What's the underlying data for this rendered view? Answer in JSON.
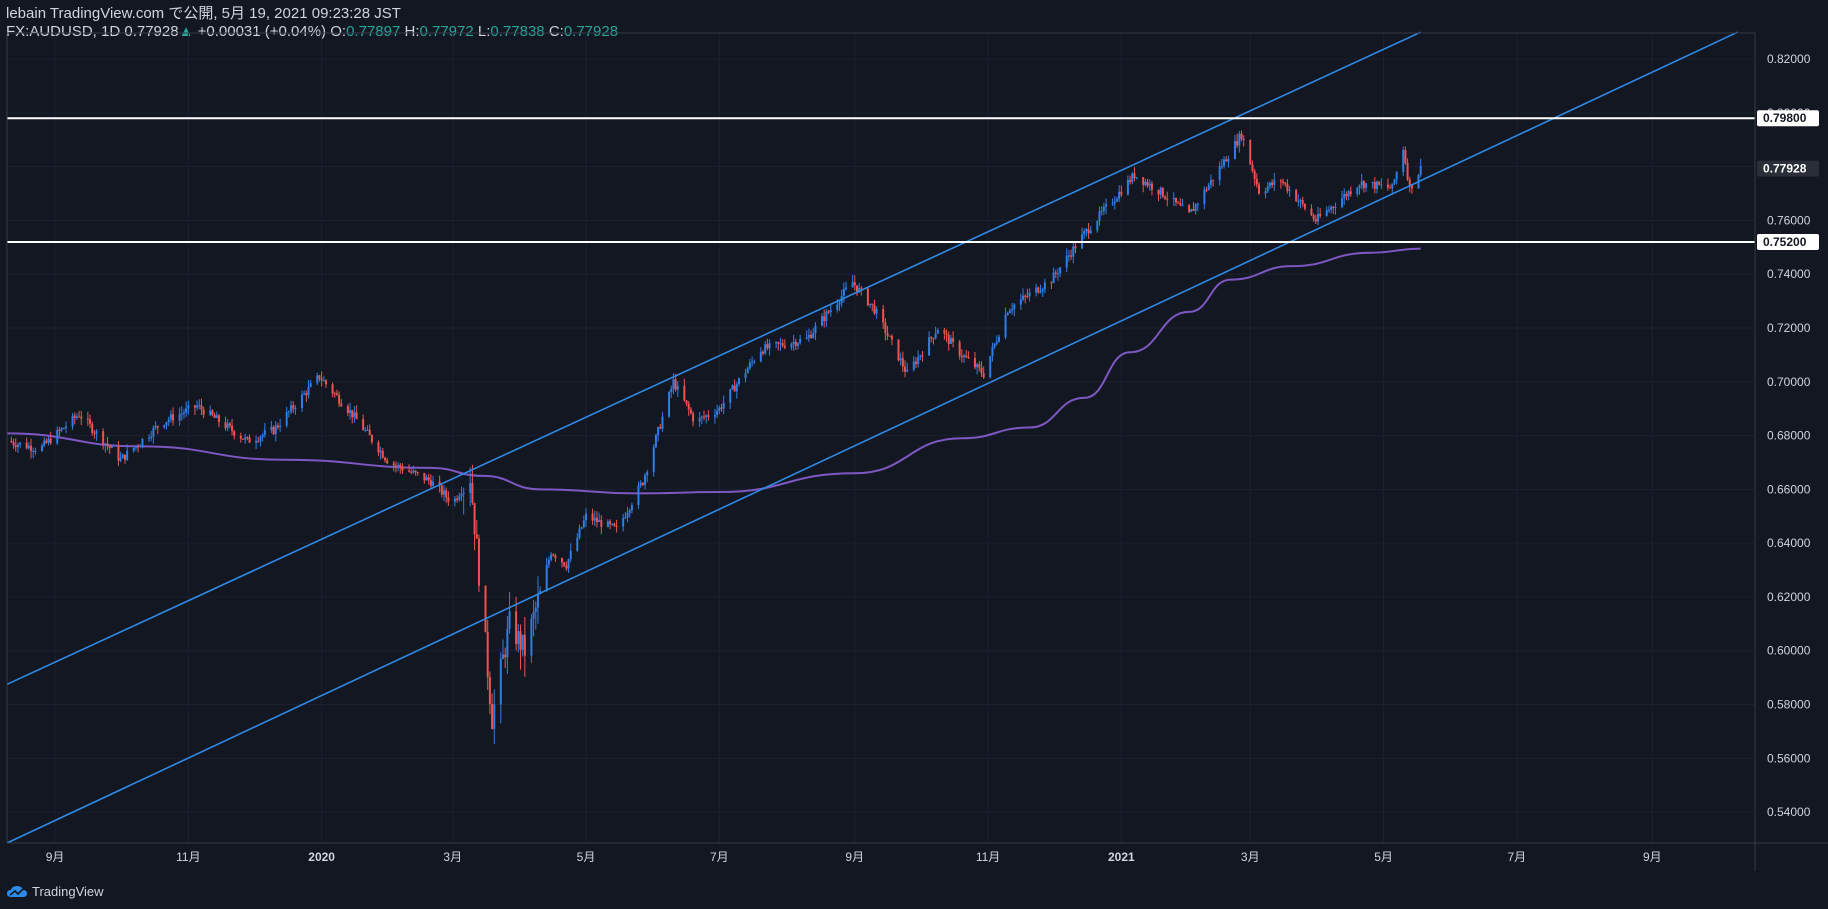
{
  "header": {
    "line1": "lebain TradingView.com で公開, 5月 19, 2021 09:23:28 JST",
    "symbol": "FX:AUDUSD, 1D",
    "last": "0.77928",
    "change_arrow": "▲",
    "change": "+0.00031 (+0.04%)",
    "o_label": "O:",
    "o_value": "0.77897",
    "h_label": "H:",
    "h_value": "0.77972",
    "l_label": "L:",
    "l_value": "0.77838",
    "c_label": "C:",
    "c_value": "0.77928"
  },
  "footer": {
    "brand": "TradingView",
    "icon": "tradingview-cloud-icon"
  },
  "colors": {
    "background": "#131722",
    "up": "#2e7ee6",
    "down": "#ef5350",
    "channel": "#2e8ae6",
    "ma": "#7e57c2",
    "hline": "#ffffff",
    "axis_text": "#d1d4dc",
    "price_tag_bg": "#ffffff",
    "last_price_bg": "#2a2e39"
  },
  "chart_data": {
    "type": "candlestick",
    "symbol": "FX:AUDUSD",
    "timeframe": "1D",
    "y_ticks": [
      "0.82000",
      "0.80000",
      "0.78000",
      "0.76000",
      "0.74000",
      "0.72000",
      "0.70000",
      "0.68000",
      "0.66000",
      "0.64000",
      "0.62000",
      "0.60000",
      "0.58000",
      "0.56000",
      "0.54000"
    ],
    "x_ticks": [
      "9月",
      "11月",
      "2020",
      "3月",
      "5月",
      "7月",
      "9月",
      "11月",
      "2021",
      "3月",
      "5月",
      "7月",
      "9月"
    ],
    "x_range": [
      "2019-08-10",
      "2021-10-18"
    ],
    "y_range": [
      0.5285,
      0.8297
    ],
    "price_lines": [
      {
        "label": "0.79800",
        "value": 0.798
      },
      {
        "label": "0.75200",
        "value": 0.752
      }
    ],
    "last_price": {
      "label": "0.77928",
      "value": 0.77928
    },
    "channel_lines": [
      {
        "name": "upper",
        "from": [
          "2019-08-10",
          0.5875
        ],
        "to": [
          "2021-05-18",
          0.83
        ]
      },
      {
        "name": "lower",
        "from": [
          "2019-08-10",
          0.5285
        ],
        "to": [
          "2021-10-10",
          0.83
        ]
      }
    ],
    "moving_average": [
      [
        "2019-08-10",
        0.6808
      ],
      [
        "2019-10-10",
        0.676
      ],
      [
        "2019-12-15",
        0.671
      ],
      [
        "2020-02-20",
        0.668
      ],
      [
        "2020-03-15",
        0.665
      ],
      [
        "2020-04-10",
        0.66
      ],
      [
        "2020-05-25",
        0.6585
      ],
      [
        "2020-07-01",
        0.659
      ],
      [
        "2020-09-01",
        0.666
      ],
      [
        "2020-10-20",
        0.679
      ],
      [
        "2020-11-20",
        0.683
      ],
      [
        "2020-12-15",
        0.694
      ],
      [
        "2021-01-05",
        0.711
      ],
      [
        "2021-02-01",
        0.726
      ],
      [
        "2021-02-20",
        0.738
      ],
      [
        "2021-03-20",
        0.743
      ],
      [
        "2021-04-25",
        0.748
      ],
      [
        "2021-05-18",
        0.7495
      ]
    ],
    "price_anchors": [
      [
        "2019-08-10",
        0.678
      ],
      [
        "2019-08-25",
        0.675
      ],
      [
        "2019-09-12",
        0.688
      ],
      [
        "2019-10-01",
        0.671
      ],
      [
        "2019-10-20",
        0.685
      ],
      [
        "2019-11-05",
        0.691
      ],
      [
        "2019-11-28",
        0.678
      ],
      [
        "2019-12-10",
        0.682
      ],
      [
        "2019-12-31",
        0.702
      ],
      [
        "2020-01-15",
        0.688
      ],
      [
        "2020-02-01",
        0.67
      ],
      [
        "2020-02-20",
        0.663
      ],
      [
        "2020-03-01",
        0.655
      ],
      [
        "2020-03-09",
        0.665
      ],
      [
        "2020-03-19",
        0.575
      ],
      [
        "2020-03-27",
        0.61
      ],
      [
        "2020-04-03",
        0.6
      ],
      [
        "2020-04-15",
        0.637
      ],
      [
        "2020-04-22",
        0.632
      ],
      [
        "2020-05-01",
        0.65
      ],
      [
        "2020-05-15",
        0.645
      ],
      [
        "2020-05-27",
        0.663
      ],
      [
        "2020-06-10",
        0.7
      ],
      [
        "2020-06-20",
        0.685
      ],
      [
        "2020-07-01",
        0.69
      ],
      [
        "2020-07-20",
        0.712
      ],
      [
        "2020-08-10",
        0.716
      ],
      [
        "2020-08-31",
        0.737
      ],
      [
        "2020-09-10",
        0.727
      ],
      [
        "2020-09-25",
        0.703
      ],
      [
        "2020-10-09",
        0.72
      ],
      [
        "2020-10-20",
        0.71
      ],
      [
        "2020-10-30",
        0.703
      ],
      [
        "2020-11-10",
        0.727
      ],
      [
        "2020-11-30",
        0.738
      ],
      [
        "2020-12-15",
        0.755
      ],
      [
        "2021-01-07",
        0.777
      ],
      [
        "2021-01-20",
        0.77
      ],
      [
        "2021-02-01",
        0.762
      ],
      [
        "2021-02-25",
        0.792
      ],
      [
        "2021-03-05",
        0.771
      ],
      [
        "2021-03-15",
        0.775
      ],
      [
        "2021-03-31",
        0.76
      ],
      [
        "2021-04-20",
        0.774
      ],
      [
        "2021-05-05",
        0.772
      ],
      [
        "2021-05-10",
        0.787
      ],
      [
        "2021-05-13",
        0.772
      ],
      [
        "2021-05-18",
        0.7793
      ]
    ]
  }
}
